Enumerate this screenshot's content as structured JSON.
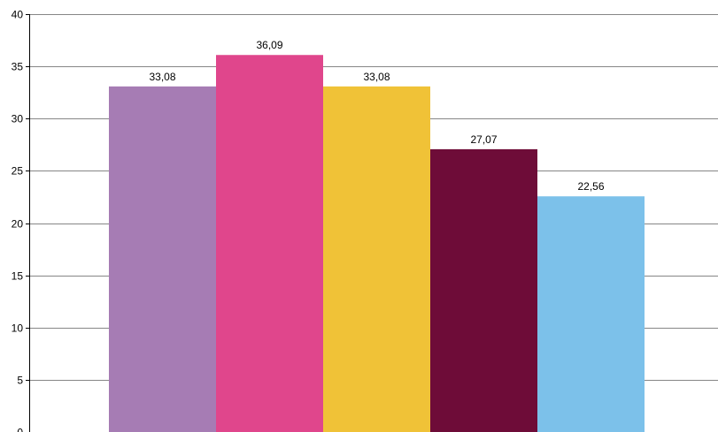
{
  "chart_data": {
    "type": "bar",
    "title": "",
    "xlabel": "",
    "ylabel": "",
    "ylim": [
      0,
      40
    ],
    "yticks": [
      0,
      5,
      10,
      15,
      20,
      25,
      30,
      35,
      40
    ],
    "ytick_labels": [
      "0",
      "5",
      "10",
      "15",
      "20",
      "25",
      "30",
      "35",
      "40"
    ],
    "grid": true,
    "legend": "none",
    "values": [
      33.08,
      36.09,
      33.08,
      27.07,
      22.56
    ],
    "value_labels": [
      "33,08",
      "36,09",
      "33,08",
      "27,07",
      "22,56"
    ],
    "colors": [
      "#a67cb4",
      "#e0468c",
      "#f0c237",
      "#6e0c38",
      "#7cc1ea"
    ]
  },
  "colors": {
    "grid": "#868686",
    "axis": "#000000",
    "background": "#ffffff"
  }
}
